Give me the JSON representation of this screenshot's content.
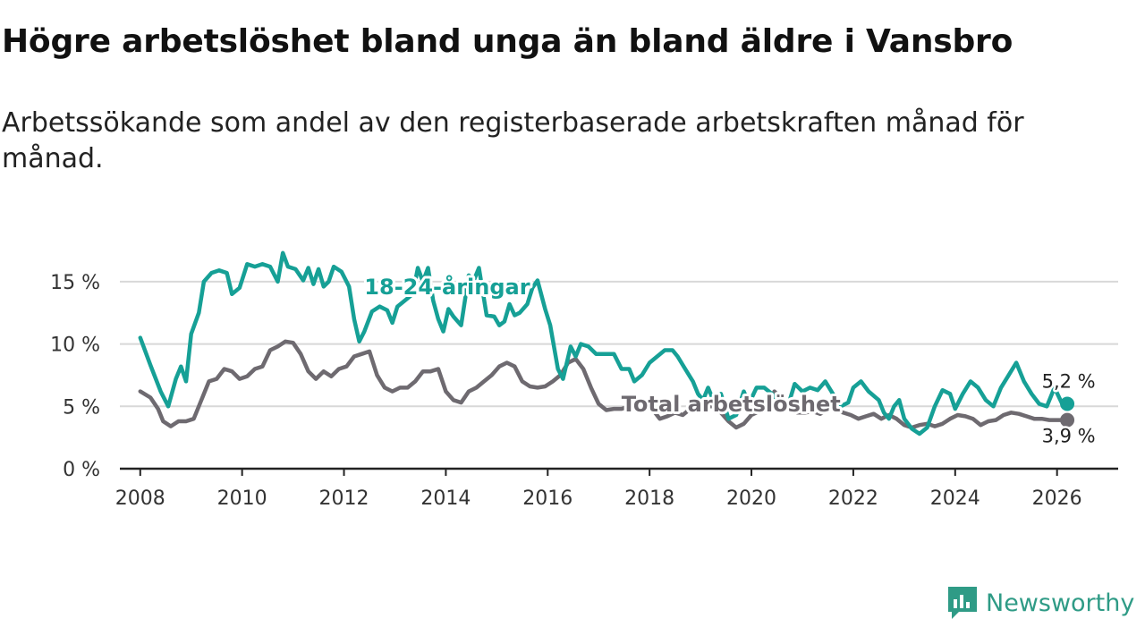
{
  "title": "Högre arbetslöshet bland unga än bland äldre i Vansbro",
  "subtitle": "Arbetssökande som andel av den registerbaserade arbetskraften månad för månad.",
  "brand": {
    "name": "Newsworthy",
    "icon": "bar-chart-badge-icon",
    "color": "#2f9b86"
  },
  "colors": {
    "youth": "#16a096",
    "total": "#6e6a70",
    "grid": "#d8d8d8",
    "axis": "#222222"
  },
  "chart_data": {
    "type": "line",
    "title": "Högre arbetslöshet bland unga än bland äldre i Vansbro",
    "xlabel": "",
    "ylabel": "",
    "xlim": [
      2007.6,
      2027.2
    ],
    "ylim": [
      0,
      17.5
    ],
    "x_ticks": [
      {
        "value": 2008,
        "label": "2008"
      },
      {
        "value": 2010,
        "label": "2010"
      },
      {
        "value": 2012,
        "label": "2012"
      },
      {
        "value": 2014,
        "label": "2014"
      },
      {
        "value": 2016,
        "label": "2016"
      },
      {
        "value": 2018,
        "label": "2018"
      },
      {
        "value": 2020,
        "label": "2020"
      },
      {
        "value": 2022,
        "label": "2022"
      },
      {
        "value": 2024,
        "label": "2024"
      },
      {
        "value": 2026,
        "label": "2026"
      }
    ],
    "y_ticks": [
      {
        "value": 0,
        "label": "0 %"
      },
      {
        "value": 5,
        "label": "5 %"
      },
      {
        "value": 10,
        "label": "10 %"
      },
      {
        "value": 15,
        "label": "15 %"
      }
    ],
    "series": [
      {
        "name": "18-24-åringar",
        "label": "18-24-åringar",
        "label_at": [
          2012.4,
          14.0
        ],
        "end_label": "5,2 %",
        "end_label_at": [
          2025.7,
          6.5
        ],
        "points": [
          [
            2008.0,
            10.5
          ],
          [
            2008.2,
            8.3
          ],
          [
            2008.4,
            6.2
          ],
          [
            2008.55,
            5.0
          ],
          [
            2008.7,
            7.2
          ],
          [
            2008.8,
            8.2
          ],
          [
            2008.9,
            7.0
          ],
          [
            2009.0,
            10.8
          ],
          [
            2009.15,
            12.5
          ],
          [
            2009.25,
            15.0
          ],
          [
            2009.4,
            15.7
          ],
          [
            2009.55,
            15.9
          ],
          [
            2009.7,
            15.7
          ],
          [
            2009.8,
            14.0
          ],
          [
            2009.95,
            14.5
          ],
          [
            2010.1,
            16.4
          ],
          [
            2010.25,
            16.2
          ],
          [
            2010.4,
            16.4
          ],
          [
            2010.55,
            16.2
          ],
          [
            2010.7,
            15.0
          ],
          [
            2010.8,
            17.3
          ],
          [
            2010.9,
            16.2
          ],
          [
            2011.05,
            16.0
          ],
          [
            2011.2,
            15.1
          ],
          [
            2011.3,
            16.1
          ],
          [
            2011.4,
            14.8
          ],
          [
            2011.5,
            16.0
          ],
          [
            2011.6,
            14.6
          ],
          [
            2011.7,
            15.0
          ],
          [
            2011.8,
            16.2
          ],
          [
            2011.95,
            15.8
          ],
          [
            2012.1,
            14.6
          ],
          [
            2012.2,
            12.0
          ],
          [
            2012.3,
            10.2
          ],
          [
            2012.4,
            11.0
          ],
          [
            2012.55,
            12.6
          ],
          [
            2012.7,
            13.0
          ],
          [
            2012.85,
            12.7
          ],
          [
            2012.95,
            11.7
          ],
          [
            2013.05,
            13.0
          ],
          [
            2013.2,
            13.5
          ],
          [
            2013.35,
            14.0
          ],
          [
            2013.45,
            16.1
          ],
          [
            2013.55,
            15.0
          ],
          [
            2013.65,
            16.1
          ],
          [
            2013.75,
            13.5
          ],
          [
            2013.85,
            12.0
          ],
          [
            2013.95,
            11.0
          ],
          [
            2014.05,
            12.8
          ],
          [
            2014.15,
            12.2
          ],
          [
            2014.3,
            11.5
          ],
          [
            2014.45,
            15.5
          ],
          [
            2014.55,
            15.1
          ],
          [
            2014.65,
            16.1
          ],
          [
            2014.8,
            12.3
          ],
          [
            2014.95,
            12.2
          ],
          [
            2015.05,
            11.5
          ],
          [
            2015.15,
            11.8
          ],
          [
            2015.25,
            13.2
          ],
          [
            2015.35,
            12.3
          ],
          [
            2015.45,
            12.5
          ],
          [
            2015.6,
            13.2
          ],
          [
            2015.7,
            14.5
          ],
          [
            2015.8,
            15.1
          ],
          [
            2015.95,
            12.8
          ],
          [
            2016.05,
            11.5
          ],
          [
            2016.2,
            8.0
          ],
          [
            2016.3,
            7.2
          ],
          [
            2016.45,
            9.8
          ],
          [
            2016.55,
            9.0
          ],
          [
            2016.65,
            10.0
          ],
          [
            2016.8,
            9.8
          ],
          [
            2016.95,
            9.2
          ],
          [
            2017.1,
            9.2
          ],
          [
            2017.3,
            9.2
          ],
          [
            2017.45,
            8.0
          ],
          [
            2017.6,
            8.0
          ],
          [
            2017.7,
            7.0
          ],
          [
            2017.85,
            7.5
          ],
          [
            2018.0,
            8.5
          ],
          [
            2018.15,
            9.0
          ],
          [
            2018.3,
            9.5
          ],
          [
            2018.45,
            9.5
          ],
          [
            2018.55,
            9.0
          ],
          [
            2018.7,
            8.0
          ],
          [
            2018.85,
            7.0
          ],
          [
            2018.95,
            6.0
          ],
          [
            2019.05,
            5.5
          ],
          [
            2019.15,
            6.5
          ],
          [
            2019.3,
            5.0
          ],
          [
            2019.4,
            6.0
          ],
          [
            2019.55,
            4.0
          ],
          [
            2019.7,
            4.3
          ],
          [
            2019.85,
            6.2
          ],
          [
            2019.95,
            5.2
          ],
          [
            2020.1,
            6.5
          ],
          [
            2020.25,
            6.5
          ],
          [
            2020.4,
            6.0
          ],
          [
            2020.55,
            5.2
          ],
          [
            2020.7,
            4.8
          ],
          [
            2020.85,
            6.8
          ],
          [
            2021.0,
            6.2
          ],
          [
            2021.15,
            6.5
          ],
          [
            2021.3,
            6.3
          ],
          [
            2021.45,
            7.0
          ],
          [
            2021.6,
            6.0
          ],
          [
            2021.75,
            5.0
          ],
          [
            2021.9,
            5.3
          ],
          [
            2022.0,
            6.5
          ],
          [
            2022.15,
            7.0
          ],
          [
            2022.3,
            6.2
          ],
          [
            2022.5,
            5.5
          ],
          [
            2022.6,
            4.5
          ],
          [
            2022.7,
            4.0
          ],
          [
            2022.8,
            5.0
          ],
          [
            2022.9,
            5.5
          ],
          [
            2023.0,
            4.0
          ],
          [
            2023.15,
            3.2
          ],
          [
            2023.3,
            2.8
          ],
          [
            2023.45,
            3.3
          ],
          [
            2023.6,
            5.0
          ],
          [
            2023.75,
            6.3
          ],
          [
            2023.9,
            6.0
          ],
          [
            2024.0,
            4.8
          ],
          [
            2024.15,
            6.0
          ],
          [
            2024.3,
            7.0
          ],
          [
            2024.45,
            6.5
          ],
          [
            2024.6,
            5.5
          ],
          [
            2024.75,
            5.0
          ],
          [
            2024.9,
            6.5
          ],
          [
            2025.05,
            7.5
          ],
          [
            2025.2,
            8.5
          ],
          [
            2025.35,
            7.0
          ],
          [
            2025.5,
            6.0
          ],
          [
            2025.65,
            5.2
          ],
          [
            2025.8,
            5.0
          ],
          [
            2025.95,
            6.5
          ],
          [
            2026.1,
            5.2
          ],
          [
            2026.2,
            5.2
          ]
        ]
      },
      {
        "name": "Total arbetslöshet",
        "label": "Total arbetslöshet",
        "label_at": [
          2019.6,
          4.6
        ],
        "end_label": "3,9 %",
        "end_label_at": [
          2025.7,
          2.1
        ],
        "points": [
          [
            2008.0,
            6.2
          ],
          [
            2008.2,
            5.7
          ],
          [
            2008.35,
            4.8
          ],
          [
            2008.45,
            3.8
          ],
          [
            2008.6,
            3.4
          ],
          [
            2008.75,
            3.8
          ],
          [
            2008.9,
            3.8
          ],
          [
            2009.05,
            4.0
          ],
          [
            2009.2,
            5.5
          ],
          [
            2009.35,
            7.0
          ],
          [
            2009.5,
            7.2
          ],
          [
            2009.65,
            8.0
          ],
          [
            2009.8,
            7.8
          ],
          [
            2009.95,
            7.2
          ],
          [
            2010.1,
            7.4
          ],
          [
            2010.25,
            8.0
          ],
          [
            2010.4,
            8.2
          ],
          [
            2010.55,
            9.5
          ],
          [
            2010.7,
            9.8
          ],
          [
            2010.85,
            10.2
          ],
          [
            2011.0,
            10.1
          ],
          [
            2011.15,
            9.2
          ],
          [
            2011.3,
            7.8
          ],
          [
            2011.45,
            7.2
          ],
          [
            2011.6,
            7.8
          ],
          [
            2011.75,
            7.4
          ],
          [
            2011.9,
            8.0
          ],
          [
            2012.05,
            8.2
          ],
          [
            2012.2,
            9.0
          ],
          [
            2012.35,
            9.2
          ],
          [
            2012.5,
            9.4
          ],
          [
            2012.65,
            7.5
          ],
          [
            2012.8,
            6.5
          ],
          [
            2012.95,
            6.2
          ],
          [
            2013.1,
            6.5
          ],
          [
            2013.25,
            6.5
          ],
          [
            2013.4,
            7.0
          ],
          [
            2013.55,
            7.8
          ],
          [
            2013.7,
            7.8
          ],
          [
            2013.85,
            8.0
          ],
          [
            2014.0,
            6.2
          ],
          [
            2014.15,
            5.5
          ],
          [
            2014.3,
            5.3
          ],
          [
            2014.45,
            6.2
          ],
          [
            2014.6,
            6.5
          ],
          [
            2014.75,
            7.0
          ],
          [
            2014.9,
            7.5
          ],
          [
            2015.05,
            8.2
          ],
          [
            2015.2,
            8.5
          ],
          [
            2015.35,
            8.2
          ],
          [
            2015.5,
            7.0
          ],
          [
            2015.65,
            6.6
          ],
          [
            2015.8,
            6.5
          ],
          [
            2015.95,
            6.6
          ],
          [
            2016.1,
            7.0
          ],
          [
            2016.25,
            7.5
          ],
          [
            2016.4,
            8.5
          ],
          [
            2016.55,
            8.8
          ],
          [
            2016.7,
            8.0
          ],
          [
            2016.85,
            6.5
          ],
          [
            2017.0,
            5.2
          ],
          [
            2017.15,
            4.7
          ],
          [
            2017.3,
            4.8
          ],
          [
            2017.45,
            4.8
          ],
          [
            2017.6,
            5.0
          ],
          [
            2017.75,
            5.2
          ],
          [
            2017.9,
            5.2
          ],
          [
            2018.05,
            4.8
          ],
          [
            2018.2,
            4.0
          ],
          [
            2018.35,
            4.2
          ],
          [
            2018.5,
            4.5
          ],
          [
            2018.65,
            4.3
          ],
          [
            2018.8,
            4.8
          ],
          [
            2018.95,
            4.8
          ],
          [
            2019.1,
            5.0
          ],
          [
            2019.25,
            5.0
          ],
          [
            2019.4,
            4.5
          ],
          [
            2019.55,
            3.8
          ],
          [
            2019.7,
            3.3
          ],
          [
            2019.85,
            3.6
          ],
          [
            2020.0,
            4.3
          ],
          [
            2020.15,
            4.6
          ],
          [
            2020.3,
            5.0
          ],
          [
            2020.45,
            6.2
          ],
          [
            2020.6,
            5.5
          ],
          [
            2020.75,
            5.0
          ],
          [
            2020.9,
            4.5
          ],
          [
            2021.05,
            4.5
          ],
          [
            2021.2,
            4.6
          ],
          [
            2021.35,
            4.4
          ],
          [
            2021.5,
            4.8
          ],
          [
            2021.65,
            4.7
          ],
          [
            2021.8,
            4.5
          ],
          [
            2021.95,
            4.3
          ],
          [
            2022.1,
            4.0
          ],
          [
            2022.25,
            4.2
          ],
          [
            2022.4,
            4.4
          ],
          [
            2022.55,
            4.0
          ],
          [
            2022.7,
            4.3
          ],
          [
            2022.85,
            4.0
          ],
          [
            2023.0,
            3.5
          ],
          [
            2023.15,
            3.3
          ],
          [
            2023.3,
            3.5
          ],
          [
            2023.45,
            3.6
          ],
          [
            2023.6,
            3.4
          ],
          [
            2023.75,
            3.6
          ],
          [
            2023.9,
            4.0
          ],
          [
            2024.05,
            4.3
          ],
          [
            2024.2,
            4.2
          ],
          [
            2024.35,
            4.0
          ],
          [
            2024.5,
            3.5
          ],
          [
            2024.65,
            3.8
          ],
          [
            2024.8,
            3.9
          ],
          [
            2024.95,
            4.3
          ],
          [
            2025.1,
            4.5
          ],
          [
            2025.25,
            4.4
          ],
          [
            2025.4,
            4.2
          ],
          [
            2025.55,
            4.0
          ],
          [
            2025.7,
            4.0
          ],
          [
            2025.85,
            3.9
          ],
          [
            2026.0,
            3.9
          ],
          [
            2026.2,
            3.9
          ]
        ]
      }
    ]
  }
}
